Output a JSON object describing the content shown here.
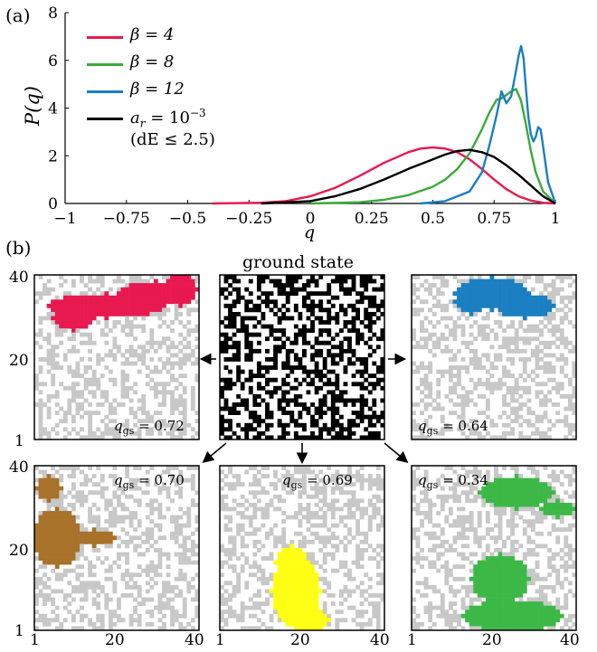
{
  "panel_a_label": "(a)",
  "panel_b_label": "(b)",
  "ground_state_title": "ground state",
  "chart_data": [
    {
      "type": "line",
      "xlabel": "q",
      "ylabel": "P(q)",
      "xlim": [
        -1,
        1
      ],
      "ylim": [
        0,
        8
      ],
      "x_ticks": [
        "−1",
        "−0.75",
        "−0.5",
        "−0.25",
        "0",
        "0.25",
        "0.5",
        "0.75",
        "1"
      ],
      "x_tick_values": [
        -1,
        -0.75,
        -0.5,
        -0.25,
        0,
        0.25,
        0.5,
        0.75,
        1
      ],
      "y_ticks": [
        "0",
        "2",
        "4",
        "6",
        "8"
      ],
      "y_tick_values": [
        0,
        2,
        4,
        6,
        8
      ],
      "legend_position": "top-left",
      "series": [
        {
          "name": "β = 4",
          "color": "#e8194f",
          "x": [
            -0.4,
            -0.2,
            -0.1,
            0,
            0.1,
            0.2,
            0.3,
            0.4,
            0.45,
            0.5,
            0.55,
            0.6,
            0.65,
            0.7,
            0.75,
            0.8,
            0.85,
            0.9,
            0.95,
            1.0
          ],
          "y": [
            0,
            0.03,
            0.1,
            0.3,
            0.65,
            1.15,
            1.7,
            2.15,
            2.3,
            2.35,
            2.3,
            2.15,
            1.85,
            1.45,
            1.0,
            0.6,
            0.3,
            0.12,
            0.03,
            0
          ]
        },
        {
          "name": "β = 8",
          "color": "#3aaa3a",
          "x": [
            0,
            0.2,
            0.3,
            0.4,
            0.5,
            0.55,
            0.6,
            0.65,
            0.7,
            0.73,
            0.76,
            0.78,
            0.8,
            0.82,
            0.84,
            0.86,
            0.88,
            0.9,
            0.92,
            0.95,
            1.0
          ],
          "y": [
            0,
            0.05,
            0.15,
            0.35,
            0.7,
            1.0,
            1.45,
            2.1,
            3.1,
            3.8,
            4.35,
            4.4,
            4.55,
            4.7,
            4.8,
            4.3,
            3.3,
            2.2,
            1.3,
            0.5,
            0
          ]
        },
        {
          "name": "β = 12",
          "color": "#1a7fc1",
          "x": [
            0.45,
            0.55,
            0.65,
            0.7,
            0.73,
            0.76,
            0.78,
            0.8,
            0.82,
            0.84,
            0.85,
            0.86,
            0.87,
            0.88,
            0.89,
            0.9,
            0.91,
            0.92,
            0.93,
            0.94,
            0.95,
            0.97,
            1.0
          ],
          "y": [
            0,
            0.1,
            0.5,
            1.3,
            2.4,
            3.7,
            4.7,
            4.2,
            4.5,
            5.6,
            6.2,
            6.6,
            6.1,
            4.8,
            3.6,
            2.9,
            2.6,
            2.8,
            3.2,
            3.1,
            2.4,
            0.9,
            0
          ]
        },
        {
          "name": "a_r = 10^{-3} (dE ≤ 2.5)",
          "color": "#000000",
          "x": [
            -0.2,
            0,
            0.1,
            0.2,
            0.3,
            0.4,
            0.5,
            0.55,
            0.6,
            0.65,
            0.7,
            0.75,
            0.8,
            0.85,
            0.9,
            0.95,
            1.0
          ],
          "y": [
            0,
            0.1,
            0.3,
            0.6,
            1.0,
            1.45,
            1.85,
            2.05,
            2.2,
            2.25,
            2.15,
            1.95,
            1.6,
            1.2,
            0.75,
            0.3,
            0
          ]
        }
      ],
      "legend_entries": [
        "β = 4",
        "β = 8",
        "β = 12",
        "a",
        "r",
        "= 10",
        "−3",
        "(dE ≤ 2.5)"
      ]
    }
  ],
  "panels_b": {
    "y_ticks_top": [
      "40",
      "20",
      "1"
    ],
    "y_ticks_bottom": [
      "40",
      "20",
      "1"
    ],
    "x_ticks": [
      "1",
      "20",
      "40"
    ],
    "q_prefix": "q",
    "q_sub": "gs",
    "lattice": [
      {
        "q_value": "= 0.72",
        "cluster_color": "#e8194f"
      },
      {
        "q_value": "= 0.64",
        "cluster_color": "#1a7fc1"
      },
      {
        "q_value": "= 0.70",
        "cluster_color": "#a8722a"
      },
      {
        "q_value": "= 0.69",
        "cluster_color": "#ffff14"
      },
      {
        "q_value": "= 0.34",
        "cluster_color": "#3cb847"
      }
    ]
  }
}
